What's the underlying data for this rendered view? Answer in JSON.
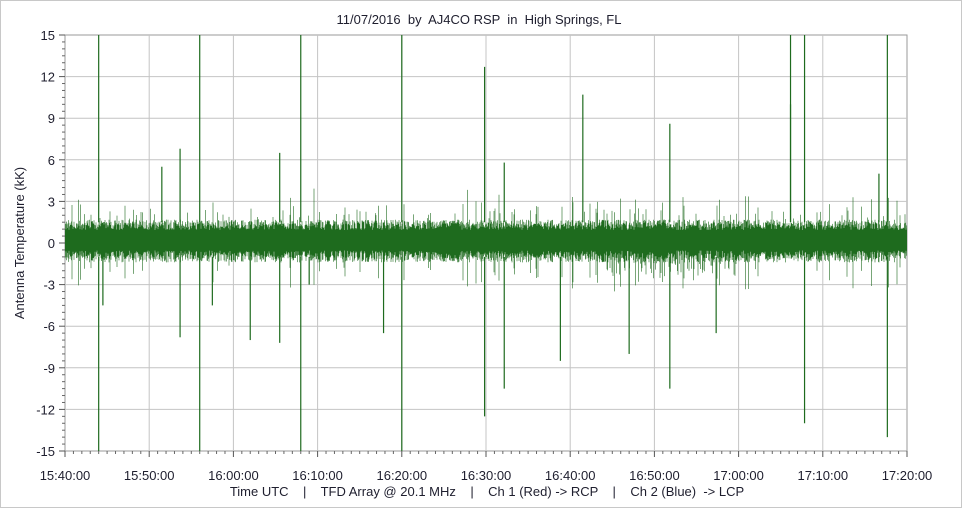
{
  "chart_data": {
    "type": "line",
    "title": "11/07/2016  by  AJ4CO RSP  in  High Springs, FL",
    "xlabel": "Time UTC    |    TFD Array @ 20.1 MHz    |    Ch 1 (Red) -> RCP    |    Ch 2 (Blue)  -> LCP",
    "ylabel": "Antenna Temperature (kK)",
    "xlim": [
      "15:40:00",
      "17:20:00"
    ],
    "ylim": [
      -15,
      15
    ],
    "x_ticks": [
      "15:40:00",
      "15:50:00",
      "16:00:00",
      "16:10:00",
      "16:20:00",
      "16:30:00",
      "16:40:00",
      "16:50:00",
      "17:00:00",
      "17:10:00",
      "17:20:00"
    ],
    "y_ticks": [
      "15",
      "12",
      "9",
      "6",
      "3",
      "0",
      "-3",
      "-6",
      "-9",
      "-12",
      "-15"
    ],
    "grid": true,
    "series": [
      {
        "color": "#1e6b1e",
        "baseline_band": [
          -1.0,
          1.5
        ],
        "spikes": [
          {
            "t": "15:44:00",
            "y": 15
          },
          {
            "t": "15:44:00",
            "y": -15
          },
          {
            "t": "15:44:30",
            "y": -4.5
          },
          {
            "t": "15:51:30",
            "y": 5.5
          },
          {
            "t": "15:53:40",
            "y": 6.8
          },
          {
            "t": "15:53:40",
            "y": -6.8
          },
          {
            "t": "15:56:00",
            "y": 15
          },
          {
            "t": "15:56:00",
            "y": -15
          },
          {
            "t": "15:57:30",
            "y": -4.5
          },
          {
            "t": "16:02:00",
            "y": -7.0
          },
          {
            "t": "16:05:30",
            "y": 6.5
          },
          {
            "t": "16:05:30",
            "y": -7.2
          },
          {
            "t": "16:08:00",
            "y": 15
          },
          {
            "t": "16:08:00",
            "y": -15
          },
          {
            "t": "16:09:00",
            "y": -3.0
          },
          {
            "t": "16:17:50",
            "y": -6.5
          },
          {
            "t": "16:20:00",
            "y": 15
          },
          {
            "t": "16:20:00",
            "y": -15
          },
          {
            "t": "16:29:50",
            "y": 12.7
          },
          {
            "t": "16:29:50",
            "y": -12.5
          },
          {
            "t": "16:32:10",
            "y": 5.8
          },
          {
            "t": "16:32:10",
            "y": -10.5
          },
          {
            "t": "16:38:50",
            "y": -8.5
          },
          {
            "t": "16:41:30",
            "y": 10.7
          },
          {
            "t": "16:47:00",
            "y": -8.0
          },
          {
            "t": "16:51:50",
            "y": 8.6
          },
          {
            "t": "16:51:50",
            "y": -10.5
          },
          {
            "t": "16:57:20",
            "y": -6.5
          },
          {
            "t": "17:06:10",
            "y": 15
          },
          {
            "t": "17:06:10",
            "y": 10.0
          },
          {
            "t": "17:07:50",
            "y": 15
          },
          {
            "t": "17:07:50",
            "y": -13.0
          },
          {
            "t": "17:17:40",
            "y": 15
          },
          {
            "t": "17:17:40",
            "y": -14.0
          },
          {
            "t": "17:16:40",
            "y": 5.0
          }
        ]
      }
    ]
  }
}
